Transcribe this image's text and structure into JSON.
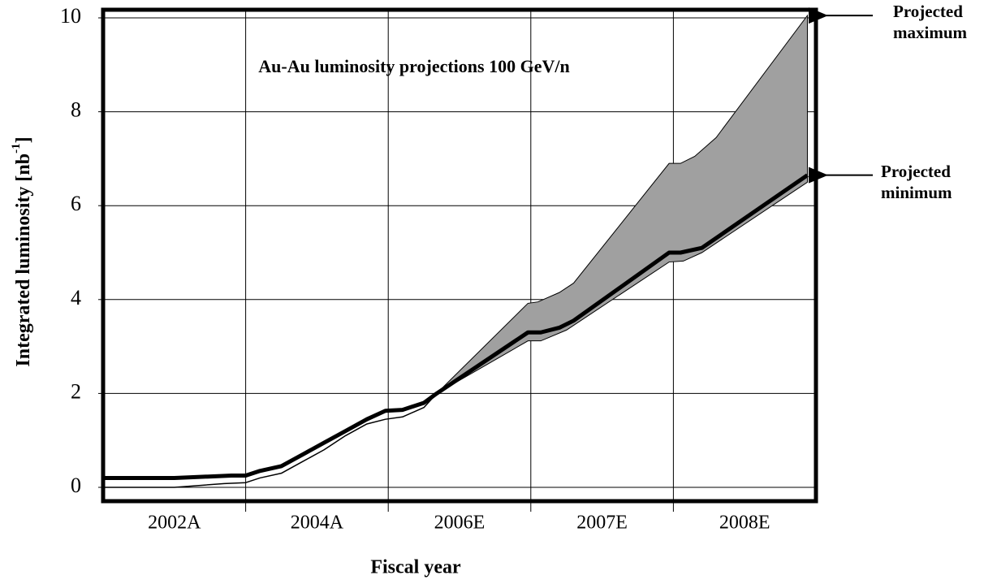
{
  "chart_data": {
    "type": "line",
    "title": "Au-Au luminosity projections 100 GeV/n",
    "x_label": "Fiscal year",
    "y_label": {
      "text": "Integrated luminosity [nb",
      "superscript": "-1",
      "suffix": "]"
    },
    "categories": [
      "2002A",
      "2004A",
      "2006E",
      "2007E",
      "2008E"
    ],
    "xlim": [
      0,
      5
    ],
    "ylim": [
      0,
      10
    ],
    "yticks": [
      0,
      2,
      4,
      6,
      8,
      10
    ],
    "grid": true,
    "band": {
      "color": "#a0a0a0",
      "upper": {
        "name": "Projected maximum",
        "x": [
          2.34,
          2.98,
          3.05,
          3.2,
          3.3,
          3.97,
          4.05,
          4.15,
          4.3,
          4.94
        ],
        "values": [
          2.0,
          3.92,
          3.95,
          4.15,
          4.35,
          6.9,
          6.9,
          7.05,
          7.45,
          10.05
        ]
      },
      "lower": {
        "x": [
          2.34,
          2.98,
          3.07,
          3.25,
          3.97,
          4.07,
          4.2,
          4.94
        ],
        "values": [
          2.0,
          3.12,
          3.12,
          3.35,
          4.8,
          4.82,
          5.0,
          6.5
        ]
      }
    },
    "series": [
      {
        "name": "Projected minimum",
        "color": "#000000",
        "width": 5,
        "x": [
          0,
          0.5,
          0.9,
          1.0,
          1.1,
          1.25,
          1.4,
          1.55,
          1.7,
          1.85,
          1.98,
          2.1,
          2.25,
          2.34,
          2.98,
          3.07,
          3.2,
          3.3,
          3.97,
          4.05,
          4.2,
          4.94
        ],
        "values": [
          0.2,
          0.2,
          0.25,
          0.25,
          0.35,
          0.45,
          0.7,
          0.95,
          1.2,
          1.45,
          1.63,
          1.65,
          1.8,
          2.0,
          3.3,
          3.3,
          3.4,
          3.55,
          5.0,
          5.0,
          5.1,
          6.65
        ]
      },
      {
        "color": "#000000",
        "width": 1.5,
        "x": [
          0,
          0.5,
          0.85,
          1.0,
          1.1,
          1.25,
          1.4,
          1.55,
          1.7,
          1.85,
          1.98,
          2.1,
          2.25,
          2.34
        ],
        "values": [
          0,
          0,
          0.08,
          0.1,
          0.2,
          0.3,
          0.55,
          0.8,
          1.1,
          1.35,
          1.45,
          1.5,
          1.7,
          2.0
        ]
      }
    ]
  }
}
